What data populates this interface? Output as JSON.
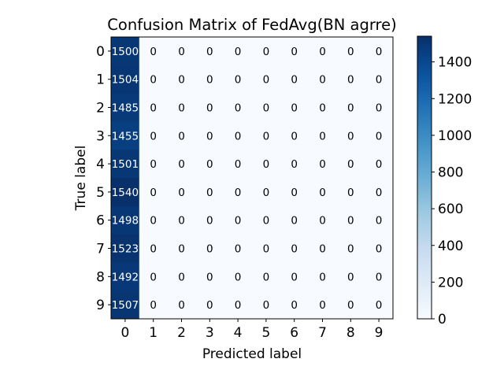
{
  "chart_data": {
    "type": "heatmap",
    "title": "Confusion Matrix of FedAvg(BN agrre)",
    "xlabel": "Predicted label",
    "ylabel": "True label",
    "x_categories": [
      "0",
      "1",
      "2",
      "3",
      "4",
      "5",
      "6",
      "7",
      "8",
      "9"
    ],
    "y_categories": [
      "0",
      "1",
      "2",
      "3",
      "4",
      "5",
      "6",
      "7",
      "8",
      "9"
    ],
    "values": [
      [
        1500,
        0,
        0,
        0,
        0,
        0,
        0,
        0,
        0,
        0
      ],
      [
        1504,
        0,
        0,
        0,
        0,
        0,
        0,
        0,
        0,
        0
      ],
      [
        1485,
        0,
        0,
        0,
        0,
        0,
        0,
        0,
        0,
        0
      ],
      [
        1455,
        0,
        0,
        0,
        0,
        0,
        0,
        0,
        0,
        0
      ],
      [
        1501,
        0,
        0,
        0,
        0,
        0,
        0,
        0,
        0,
        0
      ],
      [
        1540,
        0,
        0,
        0,
        0,
        0,
        0,
        0,
        0,
        0
      ],
      [
        1498,
        0,
        0,
        0,
        0,
        0,
        0,
        0,
        0,
        0
      ],
      [
        1523,
        0,
        0,
        0,
        0,
        0,
        0,
        0,
        0,
        0
      ],
      [
        1492,
        0,
        0,
        0,
        0,
        0,
        0,
        0,
        0,
        0
      ],
      [
        1507,
        0,
        0,
        0,
        0,
        0,
        0,
        0,
        0,
        0
      ]
    ],
    "colormap": "Blues",
    "colorbar": {
      "ticks": [
        0,
        200,
        400,
        600,
        800,
        1000,
        1200,
        1400
      ],
      "range": [
        0,
        1540
      ]
    },
    "colors": {
      "low": "#f7fbff",
      "high": "#08306b",
      "text_on_dark": "#ffffff",
      "text_on_light": "#000000"
    }
  }
}
